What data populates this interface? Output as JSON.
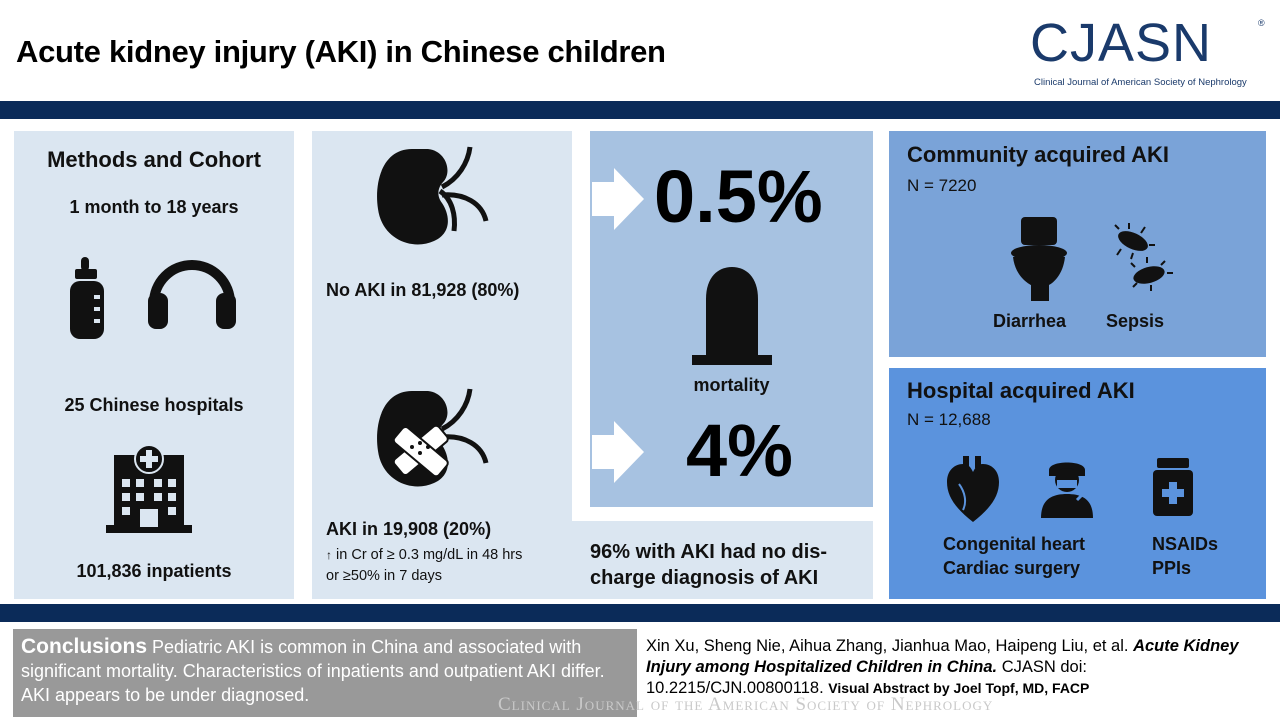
{
  "title": "Acute kidney injury (AKI) in Chinese children",
  "logo": {
    "name": "CJASN",
    "registered": "®",
    "subtitle": "Clinical Journal of American Society of Nephrology"
  },
  "colors": {
    "navy_band": "#0b2b59",
    "light_panel": "#dbe6f1",
    "mortality_panel": "#a7c2e1",
    "community_panel": "#7aa3d8",
    "hospital_panel": "#5b93dd",
    "conclusions_bg": "#999999"
  },
  "methods": {
    "heading": "Methods and Cohort",
    "age_range": "1 month to 18 years",
    "hospitals": "25 Chinese hospitals",
    "inpatients": "101,836 inpatients",
    "icons": [
      "baby-bottle-icon",
      "headphones-icon",
      "hospital-building-icon"
    ]
  },
  "kidneys": {
    "no_aki": "No AKI in 81,928 (80%)",
    "aki": "AKI in 19,908 (20%)",
    "criteria_line1": "in Cr of ≥ 0.3 mg/dL in 48 hrs",
    "criteria_arrow": "↑",
    "criteria_line2": "or ≥50% in 7 days",
    "icons": [
      "kidney-icon",
      "bandaged-kidney-icon"
    ]
  },
  "mortality": {
    "no_aki_rate": "0.5%",
    "label": "mortality",
    "aki_rate": "4%",
    "icons": [
      "arrow-right-icon",
      "tombstone-icon"
    ]
  },
  "no_diagnosis": {
    "line1": "96% with AKI had no dis-",
    "line2": "charge diagnosis of AKI"
  },
  "community": {
    "heading": "Community acquired AKI",
    "n": "N = 7220",
    "cause1": "Diarrhea",
    "cause2": "Sepsis",
    "icons": [
      "toilet-icon",
      "bacteria-icon"
    ]
  },
  "hospital": {
    "heading": "Hospital acquired AKI",
    "n": "N = 12,688",
    "cause1_line1": "Congenital heart",
    "cause1_line2": "Cardiac surgery",
    "cause2_line1": "NSAIDs",
    "cause2_line2": "PPIs",
    "icons": [
      "heart-icon",
      "surgeon-icon",
      "medicine-bottle-icon"
    ]
  },
  "conclusions": {
    "lead": "Conclusions",
    "text": "Pediatric AKI is common in China and associated with significant mortality. Characteristics of inpatients and outpatient AKI differ. AKI appears to be under diagnosed."
  },
  "citation": {
    "authors": "Xin Xu, Sheng Nie, Aihua Zhang, Jianhua Mao, Haipeng Liu, et al.",
    "article": "Acute Kidney Injury among Hospitalized Children in China.",
    "doi": "CJASN doi: 10.2215/CJN.00800118.",
    "credit": "Visual Abstract by Joel Topf, MD, FACP"
  },
  "watermark": "Clinical Journal of the American Society of Nephrology"
}
